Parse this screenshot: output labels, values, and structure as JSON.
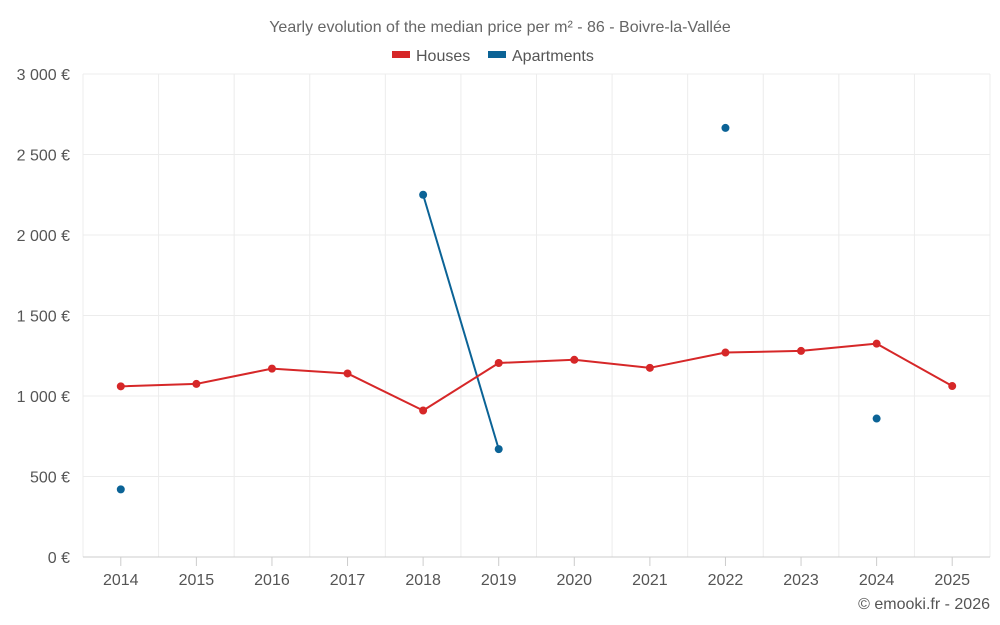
{
  "chart_data": {
    "type": "line",
    "title": "Yearly evolution of the median price per m² - 86 - Boivre-la-Vallée",
    "categories": [
      "2014",
      "2015",
      "2016",
      "2017",
      "2018",
      "2019",
      "2020",
      "2021",
      "2022",
      "2023",
      "2024",
      "2025"
    ],
    "ylim": [
      0,
      3000
    ],
    "yticks": [
      0,
      500,
      1000,
      1500,
      2000,
      2500,
      3000
    ],
    "ytick_labels": [
      "0 €",
      "500 €",
      "1 000 €",
      "1 500 €",
      "2 000 €",
      "2 500 €",
      "3 000 €"
    ],
    "xlabel": "",
    "ylabel": "",
    "grid": true,
    "legend_position": "top-center",
    "series": [
      {
        "name": "Houses",
        "color": "#d62728",
        "values": [
          1060,
          1075,
          1170,
          1140,
          910,
          1205,
          1225,
          1175,
          1270,
          1280,
          1325,
          1062
        ]
      },
      {
        "name": "Apartments",
        "color": "#0b6396",
        "values": [
          420,
          null,
          null,
          null,
          2250,
          670,
          null,
          null,
          2665,
          null,
          860,
          null
        ]
      }
    ]
  },
  "credit": "© emooki.fr - 2026"
}
